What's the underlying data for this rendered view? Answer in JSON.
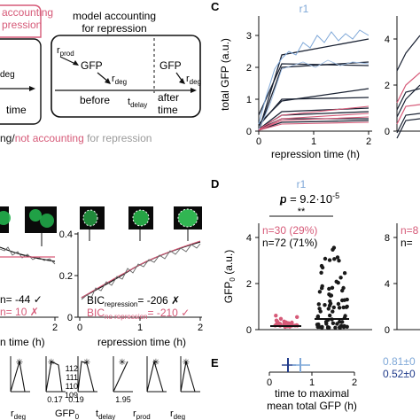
{
  "panelA": {
    "title_left": [
      "accounting",
      "pression"
    ],
    "axis_time": "time",
    "r_deg_fragment": "deg",
    "title_right": [
      "model accounting",
      "for repression"
    ],
    "r_prod": "r",
    "r_prod_sub": "prod",
    "gfp": "GFP",
    "r_deg": "r",
    "r_deg_sub": "deg",
    "before": "before",
    "t_delay": "t",
    "t_delay_sub": "delay",
    "after_time": [
      "after",
      "time"
    ],
    "legend_a": "ng/",
    "legend_b": "not accounting",
    "legend_c": " for repression"
  },
  "panelB": {
    "bic_left_1": "n= -44 ✓",
    "bic_left_2": "n=  10 ✗",
    "bic_rep_label": "BIC",
    "bic_rep_sub": "repression",
    "bic_rep_val": "= -206 ✗",
    "bic_norep_label": "BIC",
    "bic_norep_sub": "no repression",
    "bic_norep_val": "= -210 ✓",
    "xlabel_left": "n time (h)",
    "xlabel_right": "repression time (h)",
    "left_tick_2": "2",
    "right_ticks_x": [
      "0",
      "1",
      "2"
    ],
    "right_ticks_y": [
      "0",
      "0.2",
      "0.4"
    ]
  },
  "panelC": {
    "letter": "C",
    "title": "r1",
    "ylabel": "total GFP (a.u.)",
    "xlabel": "repression time (h)",
    "yticks": [
      "0",
      "1",
      "2",
      "3"
    ],
    "xticks": [
      "0",
      "1",
      "2"
    ],
    "right_yticks": [
      "0",
      "2",
      "4"
    ]
  },
  "panelD": {
    "letter": "D",
    "title": "r1",
    "pvalue_prefix": "p = 9.2·10",
    "pvalue_exp": "-5",
    "stars": "**",
    "n_red": "n=30 (29%)",
    "n_black": "n=72 (71%)",
    "ylabel": "GFP",
    "ylabel_sub": "0",
    "ylabel_unit": " (a.u.)",
    "yticks": [
      "0",
      "2",
      "4"
    ],
    "right_n_red": "n=8",
    "right_n_black": "n=",
    "right_yticks": [
      "0",
      "4",
      "8"
    ]
  },
  "panelE": {
    "letter": "E",
    "xlabel_1": "time to maximal",
    "xlabel_2": "mean total GFP (h)",
    "xticks": [
      "0",
      "1",
      "2"
    ],
    "val_light": "0.81±0",
    "val_dark": "0.52±0"
  },
  "params": {
    "labels": [
      {
        "t": "r",
        "s": "deg"
      },
      {
        "t": "GFP",
        "s": "0"
      },
      {
        "t": "t",
        "s": "delay"
      },
      {
        "t": "r",
        "s": "prod"
      },
      {
        "t": "r",
        "s": "deg"
      }
    ],
    "ticks_a": [
      "0.17",
      "0.19"
    ],
    "ticks_b": [
      "1.95"
    ],
    "yticks": [
      "112",
      "111",
      "110",
      "109"
    ]
  },
  "colors": {
    "pink": "#d65a78",
    "lightblue": "#7fa8d8",
    "darkblue": "#1f3a8a",
    "green": "#22b14c",
    "gray": "#9a9a9a"
  }
}
